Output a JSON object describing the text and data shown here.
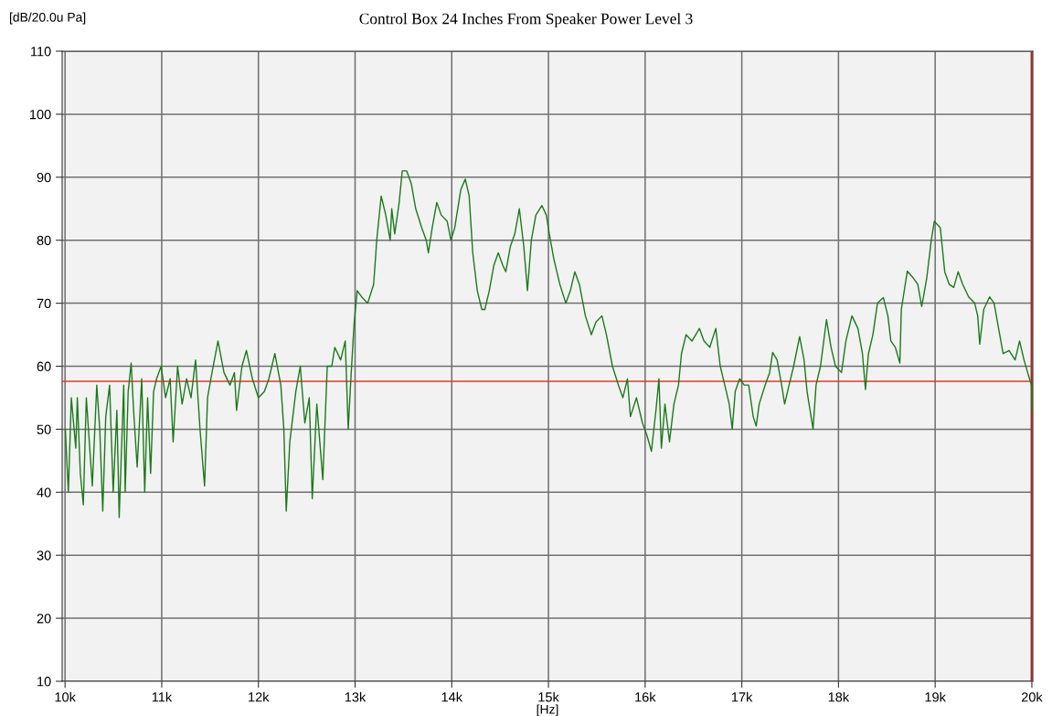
{
  "chart_data": {
    "type": "line",
    "title": "Control Box 24 Inches From Speaker Power Level 3",
    "xlabel": "[Hz]",
    "ylabel": "[dB/20.0u Pa]",
    "xlim": [
      9970,
      20010
    ],
    "ylim": [
      10,
      110
    ],
    "xticks": [
      {
        "value": 10000,
        "label": "10k"
      },
      {
        "value": 11000,
        "label": "11k"
      },
      {
        "value": 12000,
        "label": "12k"
      },
      {
        "value": 13000,
        "label": "13k"
      },
      {
        "value": 14000,
        "label": "14k"
      },
      {
        "value": 15000,
        "label": "15k"
      },
      {
        "value": 16000,
        "label": "16k"
      },
      {
        "value": 17000,
        "label": "17k"
      },
      {
        "value": 18000,
        "label": "18k"
      },
      {
        "value": 19000,
        "label": "19k"
      },
      {
        "value": 20000,
        "label": "20k"
      }
    ],
    "yticks": [
      10,
      20,
      30,
      40,
      50,
      60,
      70,
      80,
      90,
      100,
      110
    ],
    "grid": true,
    "legend": false,
    "marker": "none",
    "line_style": "solid",
    "ref_lines": [
      {
        "axis": "y",
        "value": 57.6,
        "color": "#e03a2a"
      },
      {
        "axis": "x",
        "value": 20000,
        "color": "#a0302a"
      }
    ],
    "series": [
      {
        "color": "#1a7a1a",
        "x": [
          10003,
          10034,
          10065,
          10111,
          10127,
          10158,
          10189,
          10220,
          10251,
          10282,
          10328,
          10359,
          10390,
          10421,
          10461,
          10498,
          10536,
          10560,
          10607,
          10622,
          10653,
          10684,
          10709,
          10746,
          10793,
          10824,
          10854,
          10885,
          10916,
          10947,
          10994,
          11040,
          11087,
          11118,
          11164,
          11211,
          11257,
          11303,
          11350,
          11396,
          11443,
          11474,
          11520,
          11582,
          11644,
          11706,
          11752,
          11774,
          11830,
          11876,
          11938,
          12000,
          12062,
          12108,
          12170,
          12232,
          12263,
          12288,
          12325,
          12387,
          12433,
          12480,
          12526,
          12557,
          12604,
          12666,
          12712,
          12759,
          12790,
          12851,
          12898,
          12929,
          12960,
          12991,
          13022,
          13068,
          13130,
          13192,
          13224,
          13270,
          13317,
          13363,
          13379,
          13410,
          13456,
          13488,
          13534,
          13581,
          13627,
          13689,
          13736,
          13758,
          13798,
          13845,
          13891,
          13953,
          13991,
          14031,
          14093,
          14140,
          14180,
          14217,
          14264,
          14311,
          14342,
          14388,
          14435,
          14481,
          14528,
          14559,
          14606,
          14652,
          14699,
          14745,
          14783,
          14823,
          14870,
          14932,
          14978,
          15009,
          15056,
          15118,
          15180,
          15227,
          15273,
          15320,
          15382,
          15444,
          15491,
          15553,
          15600,
          15662,
          15724,
          15770,
          15817,
          15848,
          15910,
          15972,
          16019,
          16065,
          16112,
          16143,
          16168,
          16205,
          16252,
          16298,
          16345,
          16376,
          16423,
          16485,
          16562,
          16609,
          16669,
          16731,
          16777,
          16824,
          16870,
          16901,
          16932,
          16978,
          17025,
          17071,
          17118,
          17149,
          17180,
          17241,
          17288,
          17319,
          17365,
          17412,
          17443,
          17489,
          17536,
          17598,
          17644,
          17675,
          17706,
          17737,
          17768,
          17814,
          17876,
          17923,
          17969,
          18031,
          18077,
          18139,
          18201,
          18248,
          18279,
          18310,
          18356,
          18403,
          18464,
          18511,
          18542,
          18588,
          18635,
          18650,
          18712,
          18774,
          18820,
          18861,
          18913,
          18960,
          18991,
          19053,
          19099,
          19145,
          19192,
          19238,
          19285,
          19347,
          19409,
          19440,
          19461,
          19502,
          19563,
          19610,
          19656,
          19703,
          19765,
          19827,
          19873,
          19919,
          19966,
          19997,
          20000
        ],
        "values": [
          50,
          40,
          55,
          47,
          55,
          43,
          38,
          55,
          48,
          41,
          57,
          50,
          37,
          52,
          57,
          40,
          53,
          36,
          57,
          40,
          56,
          60.5,
          53,
          44,
          58,
          40,
          55,
          43,
          56,
          58,
          60,
          55,
          58,
          48,
          60,
          54,
          58,
          55,
          61,
          50,
          41,
          55,
          59,
          64,
          59,
          57,
          59,
          53,
          60,
          62.5,
          58,
          55,
          56,
          58,
          62,
          57,
          50,
          37,
          48,
          56,
          60,
          51,
          55,
          39,
          54,
          42,
          60,
          60,
          63,
          61,
          64,
          50,
          59,
          67,
          72,
          71,
          70,
          73,
          80,
          87,
          84,
          80,
          85,
          81,
          86,
          91,
          91,
          89,
          85,
          82,
          80,
          78,
          82,
          86,
          84,
          83,
          80,
          82,
          88,
          89.7,
          87,
          78,
          72,
          69,
          69,
          72,
          76,
          78,
          76,
          75,
          79,
          81,
          85,
          79,
          72,
          80,
          84,
          85.5,
          84,
          81,
          77,
          73,
          70,
          72,
          75,
          73,
          68,
          65,
          67,
          68,
          65,
          60,
          57,
          55,
          58,
          52,
          55,
          51,
          49,
          46.5,
          53,
          58,
          47,
          54,
          48,
          54,
          57,
          62,
          65,
          64,
          66,
          64,
          63,
          66,
          60,
          57,
          54,
          50,
          56,
          58,
          57,
          57,
          52,
          50.5,
          54,
          57,
          59,
          62.2,
          61,
          57,
          54,
          57,
          60,
          64.7,
          61,
          56,
          53,
          50,
          57,
          60,
          67.4,
          63,
          60,
          59,
          64,
          68,
          66,
          62,
          56.3,
          62,
          65,
          70,
          70.9,
          68,
          64,
          63,
          60.5,
          69,
          75.1,
          74,
          73,
          69.5,
          74,
          80,
          83,
          82,
          75,
          73,
          72.5,
          75,
          73,
          71,
          70,
          68,
          63.5,
          69,
          71,
          70,
          66,
          62,
          62.5,
          61,
          64,
          61,
          58.5,
          57,
          53
        ]
      }
    ]
  }
}
